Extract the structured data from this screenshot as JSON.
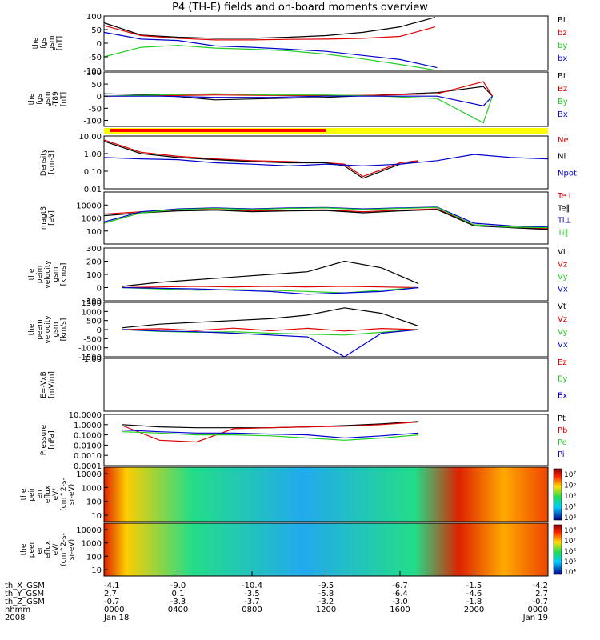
{
  "title": "P4 (TH-E) fields and on-board moments overview",
  "colors": {
    "black": "#000000",
    "red": "#dd0000",
    "green": "#22cc22",
    "blue": "#0000cc",
    "mode_red": "#ff0000",
    "mode_yellow": "#ffff00"
  },
  "chart_data": [
    {
      "type": "line",
      "panel": "fgs",
      "ylabel": [
        "the",
        "fgs",
        "gsm",
        "[nT]"
      ],
      "ylim": [
        -100,
        100
      ],
      "yticks": [
        "100",
        "50",
        "0",
        "-50",
        "-100"
      ],
      "series": [
        {
          "name": "Bt",
          "color": "black",
          "x": [
            0,
            2,
            4,
            6,
            8,
            10,
            12,
            14,
            16,
            17.9
          ],
          "values": [
            75,
            30,
            22,
            18,
            18,
            22,
            28,
            40,
            60,
            95
          ]
        },
        {
          "name": "bz",
          "color": "red",
          "x": [
            0,
            2,
            4,
            6,
            8,
            10,
            12,
            14,
            16,
            17.9
          ],
          "values": [
            65,
            28,
            18,
            12,
            12,
            14,
            15,
            18,
            25,
            60
          ]
        },
        {
          "name": "by",
          "color": "green",
          "x": [
            0,
            2,
            4,
            6,
            8,
            10,
            12,
            14,
            16,
            18
          ],
          "values": [
            -50,
            -15,
            -8,
            -18,
            -22,
            -28,
            -40,
            -58,
            -78,
            -100
          ]
        },
        {
          "name": "bx",
          "color": "blue",
          "x": [
            0,
            2,
            4,
            6,
            8,
            10,
            12,
            14,
            16,
            18
          ],
          "values": [
            40,
            15,
            10,
            -10,
            -15,
            -22,
            -30,
            -45,
            -60,
            -90
          ]
        }
      ]
    },
    {
      "type": "line",
      "panel": "fgs-t89",
      "ylabel": [
        "the",
        "fgs",
        "gsm",
        "-T89",
        "[nT]"
      ],
      "ylim": [
        -125,
        100
      ],
      "yticks": [
        "100",
        "50",
        "0",
        "-50",
        "-100"
      ],
      "series": [
        {
          "name": "Bt",
          "color": "black",
          "x": [
            0,
            3,
            6,
            9,
            12,
            15,
            18,
            20.5,
            21
          ],
          "values": [
            10,
            5,
            -15,
            -10,
            -5,
            5,
            15,
            40,
            0
          ]
        },
        {
          "name": "Bz",
          "color": "red",
          "x": [
            0,
            3,
            6,
            9,
            12,
            15,
            18,
            20.5,
            21
          ],
          "values": [
            0,
            2,
            5,
            3,
            2,
            4,
            10,
            60,
            0
          ]
        },
        {
          "name": "By",
          "color": "green",
          "x": [
            0,
            3,
            6,
            9,
            12,
            15,
            18,
            20.5,
            21
          ],
          "values": [
            0,
            5,
            10,
            5,
            5,
            0,
            -10,
            -110,
            0
          ]
        },
        {
          "name": "Bx",
          "color": "blue",
          "x": [
            0,
            3,
            6,
            9,
            12,
            15,
            18,
            20.5,
            21
          ],
          "values": [
            0,
            0,
            -5,
            -5,
            0,
            0,
            0,
            -40,
            0
          ]
        }
      ],
      "legend": [
        "Bt",
        "Bz",
        "By",
        "Bx"
      ]
    },
    {
      "type": "line",
      "panel": "density",
      "ylabel": [
        "Density",
        "[cm-3]"
      ],
      "ylim": [
        0.01,
        10
      ],
      "yscale": "log",
      "yticks": [
        "10.00",
        "1.00",
        "0.10",
        "0.01"
      ],
      "series": [
        {
          "name": "Ne",
          "color": "red",
          "x": [
            0,
            2,
            4,
            6,
            8,
            10,
            12,
            13,
            14,
            16,
            17
          ],
          "values": [
            6,
            1.2,
            0.7,
            0.5,
            0.4,
            0.35,
            0.3,
            0.25,
            0.05,
            0.3,
            0.4
          ]
        },
        {
          "name": "Ni",
          "color": "black",
          "x": [
            0,
            2,
            4,
            6,
            8,
            10,
            12,
            13,
            14,
            16,
            17
          ],
          "values": [
            5,
            1.0,
            0.6,
            0.45,
            0.35,
            0.3,
            0.3,
            0.2,
            0.04,
            0.25,
            0.35
          ]
        },
        {
          "name": "Npot",
          "color": "blue",
          "x": [
            0,
            2,
            4,
            6,
            8,
            10,
            12,
            14,
            16,
            18,
            20,
            22,
            24
          ],
          "values": [
            0.6,
            0.5,
            0.45,
            0.3,
            0.25,
            0.2,
            0.25,
            0.2,
            0.25,
            0.4,
            0.9,
            0.6,
            0.5
          ]
        }
      ]
    },
    {
      "type": "line",
      "panel": "temperature",
      "ylabel": [
        "magt3",
        "[eV]"
      ],
      "ylim": [
        10,
        100000
      ],
      "yscale": "log",
      "yticks": [
        "10000",
        "1000",
        "100"
      ],
      "series": [
        {
          "name": "Te⊥",
          "color": "red",
          "x": [
            0,
            2,
            4,
            6,
            8,
            10,
            12,
            14,
            16,
            18,
            20,
            22,
            24
          ],
          "values": [
            2000,
            3000,
            4000,
            4500,
            3500,
            4000,
            4200,
            3000,
            4000,
            5000,
            300,
            200,
            150
          ]
        },
        {
          "name": "Te∥",
          "color": "black",
          "x": [
            0,
            2,
            4,
            6,
            8,
            10,
            12,
            14,
            16,
            18,
            20,
            22,
            24
          ],
          "values": [
            1500,
            2500,
            3500,
            4000,
            3000,
            3500,
            3800,
            2500,
            3500,
            4500,
            250,
            180,
            130
          ]
        },
        {
          "name": "Ti⊥",
          "color": "blue",
          "x": [
            0,
            2,
            4,
            6,
            8,
            10,
            12,
            14,
            16,
            18,
            20,
            22,
            24
          ],
          "values": [
            500,
            3000,
            5000,
            6000,
            5000,
            6000,
            6500,
            5000,
            6000,
            7000,
            400,
            250,
            200
          ]
        },
        {
          "name": "Ti∥",
          "color": "green",
          "x": [
            0,
            2,
            4,
            6,
            8,
            10,
            12,
            14,
            16,
            18,
            20,
            22,
            24
          ],
          "values": [
            400,
            2500,
            4500,
            5500,
            4500,
            5500,
            6000,
            4500,
            5500,
            6500,
            300,
            200,
            180
          ]
        }
      ]
    },
    {
      "type": "line",
      "panel": "peim-velocity",
      "ylabel": [
        "the",
        "peim",
        "velocity",
        "gsm",
        "[km/s]"
      ],
      "ylim": [
        -100,
        300
      ],
      "yticks": [
        "300",
        "200",
        "100",
        "0",
        "-100"
      ],
      "series": [
        {
          "name": "Vt",
          "color": "black",
          "x": [
            1,
            3,
            5,
            7,
            9,
            11,
            13,
            15,
            17
          ],
          "values": [
            10,
            40,
            60,
            80,
            100,
            120,
            200,
            150,
            30
          ]
        },
        {
          "name": "Vz",
          "color": "red",
          "x": [
            1,
            3,
            5,
            7,
            9,
            11,
            13,
            15,
            17
          ],
          "values": [
            0,
            5,
            10,
            5,
            10,
            5,
            10,
            5,
            0
          ]
        },
        {
          "name": "Vy",
          "color": "green",
          "x": [
            1,
            3,
            5,
            7,
            9,
            11,
            13,
            15,
            17
          ],
          "values": [
            0,
            -10,
            -20,
            -15,
            -20,
            -30,
            -40,
            -20,
            0
          ]
        },
        {
          "name": "Vx",
          "color": "blue",
          "x": [
            1,
            3,
            5,
            7,
            9,
            11,
            13,
            15,
            17
          ],
          "values": [
            0,
            -5,
            -10,
            -20,
            -30,
            -50,
            -40,
            -30,
            0
          ]
        }
      ]
    },
    {
      "type": "line",
      "panel": "peem-velocity",
      "ylabel": [
        "the",
        "peem",
        "velocity",
        "gsm",
        "[km/s]"
      ],
      "ylim": [
        -1500,
        1500
      ],
      "yticks": [
        "1500",
        "1000",
        "500",
        "0",
        "-500",
        "-1000",
        "-1500"
      ],
      "series": [
        {
          "name": "Vt",
          "color": "black",
          "x": [
            1,
            3,
            5,
            7,
            9,
            11,
            13,
            15,
            17
          ],
          "values": [
            100,
            300,
            400,
            500,
            600,
            800,
            1200,
            900,
            200
          ]
        },
        {
          "name": "Vz",
          "color": "red",
          "x": [
            1,
            3,
            5,
            7,
            9,
            11,
            13,
            15,
            17
          ],
          "values": [
            0,
            50,
            -50,
            80,
            -60,
            70,
            -80,
            60,
            0
          ]
        },
        {
          "name": "Vy",
          "color": "green",
          "x": [
            1,
            3,
            5,
            7,
            9,
            11,
            13,
            15,
            17
          ],
          "values": [
            0,
            -100,
            -150,
            -120,
            -200,
            -250,
            -300,
            -150,
            0
          ]
        },
        {
          "name": "Vx",
          "color": "blue",
          "x": [
            1,
            3,
            5,
            7,
            9,
            11,
            13,
            15,
            17
          ],
          "values": [
            0,
            -80,
            -120,
            -200,
            -300,
            -400,
            -1500,
            -200,
            0
          ]
        }
      ]
    },
    {
      "type": "line",
      "panel": "efield",
      "ylabel": [
        "E=-VxB",
        "[mV/m]"
      ],
      "ylim": [
        0,
        1
      ],
      "yticks": [
        "1.00"
      ],
      "series": [
        {
          "name": "Ez",
          "color": "red",
          "values": []
        },
        {
          "name": "Ey",
          "color": "green",
          "values": []
        },
        {
          "name": "Ex",
          "color": "blue",
          "values": []
        }
      ]
    },
    {
      "type": "line",
      "panel": "pressure",
      "ylabel": [
        "Pressure",
        "[nPa]"
      ],
      "ylim": [
        0.0001,
        10
      ],
      "yscale": "log",
      "yticks": [
        "10.0000",
        "1.0000",
        "0.1000",
        "0.0100",
        "0.0010",
        "0.0001"
      ],
      "series": [
        {
          "name": "Pt",
          "color": "black",
          "x": [
            1,
            3,
            5,
            7,
            9,
            11,
            13,
            15,
            17
          ],
          "values": [
            1.0,
            0.6,
            0.5,
            0.5,
            0.5,
            0.6,
            0.8,
            1.2,
            2.0
          ]
        },
        {
          "name": "Pb",
          "color": "red",
          "x": [
            1,
            3,
            5,
            7,
            9,
            11,
            13,
            15,
            17
          ],
          "values": [
            0.8,
            0.03,
            0.02,
            0.4,
            0.5,
            0.6,
            0.7,
            1.0,
            1.8
          ]
        },
        {
          "name": "Pe",
          "color": "green",
          "x": [
            1,
            3,
            5,
            7,
            9,
            11,
            13,
            15,
            17
          ],
          "values": [
            0.2,
            0.15,
            0.1,
            0.1,
            0.08,
            0.05,
            0.03,
            0.05,
            0.1
          ]
        },
        {
          "name": "Pi",
          "color": "blue",
          "x": [
            1,
            3,
            5,
            7,
            9,
            11,
            13,
            15,
            17
          ],
          "values": [
            0.3,
            0.2,
            0.15,
            0.15,
            0.12,
            0.1,
            0.05,
            0.08,
            0.15
          ]
        }
      ]
    },
    {
      "type": "heatmap",
      "panel": "peir-efflux",
      "ylabel": [
        "the",
        "peir",
        "en",
        "eflux",
        "eV/",
        "(cm^2-s-",
        "sr-eV)"
      ],
      "yscale": "log",
      "yticks": [
        "10000",
        "1000",
        "100",
        "10"
      ],
      "colorbar_ticks": [
        "10^7",
        "10^6",
        "10^5",
        "10^4",
        "10^3"
      ]
    },
    {
      "type": "heatmap",
      "panel": "peer-efflux",
      "ylabel": [
        "the",
        "peer",
        "en",
        "eflux",
        "eV/",
        "(cm^2-s-",
        "sr-eV)"
      ],
      "yscale": "log",
      "yticks": [
        "10000",
        "1000",
        "100",
        "10"
      ],
      "colorbar_ticks": [
        "10^8",
        "10^7",
        "10^6",
        "10^5",
        "10^4"
      ]
    }
  ],
  "x_axis": {
    "xlim": [
      0,
      24
    ],
    "major_ticks_hours": [
      0,
      4,
      8,
      12,
      16,
      20,
      24
    ],
    "row_labels": [
      "th_X_GSM",
      "th_Y_GSM",
      "th_Z_GSM",
      "hhmm",
      "2008"
    ],
    "columns": [
      {
        "hour": 0,
        "values": [
          "-4.1",
          "2.7",
          "-0.7",
          "0000",
          "Jan 18"
        ]
      },
      {
        "hour": 4,
        "values": [
          "-9.0",
          "0.1",
          "-3.3",
          "0400",
          ""
        ]
      },
      {
        "hour": 8,
        "values": [
          "-10.4",
          "-3.5",
          "-3.7",
          "0800",
          ""
        ]
      },
      {
        "hour": 12,
        "values": [
          "-9.5",
          "-5.8",
          "-3.2",
          "1200",
          ""
        ]
      },
      {
        "hour": 16,
        "values": [
          "-6.7",
          "-6.4",
          "-3.0",
          "1600",
          ""
        ]
      },
      {
        "hour": 20,
        "values": [
          "-1.5",
          "-4.6",
          "-1.8",
          "2000",
          ""
        ]
      },
      {
        "hour": 24,
        "values": [
          "-4.2",
          "2.7",
          "-0.7",
          "0000",
          "Jan 19"
        ]
      }
    ]
  },
  "mode_bar": {
    "red_until_hour": 12,
    "yellow_from_hour": 12
  }
}
